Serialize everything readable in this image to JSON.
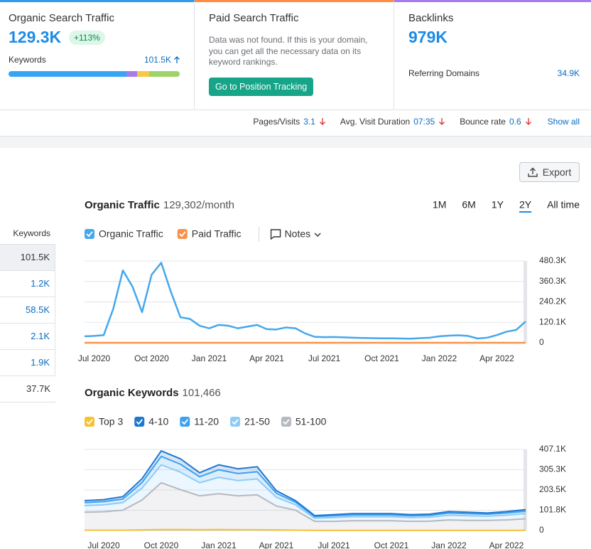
{
  "cards": [
    {
      "title": "Organic Search Traffic",
      "value": "129.3K",
      "badge": "+113%",
      "keywords_label": "Keywords",
      "keywords_value": "101.5K",
      "distribution": [
        {
          "value": 69,
          "color": "#36a6f4"
        },
        {
          "value": 6,
          "color": "#a57cf0"
        },
        {
          "value": 7,
          "color": "#f7c844"
        },
        {
          "value": 18,
          "color": "#9ed36a"
        }
      ]
    },
    {
      "title": "Paid Search Traffic",
      "message": "Data was not found. If this is your domain, you can get all the necessary data on its keyword rankings.",
      "button": "Go to Position Tracking"
    },
    {
      "title": "Backlinks",
      "value": "979K",
      "sub_label": "Referring Domains",
      "sub_value": "34.9K"
    }
  ],
  "metrics": [
    {
      "label": "Pages/Visits",
      "value": "3.1"
    },
    {
      "label": "Avg. Visit Duration",
      "value": "07:35"
    },
    {
      "label": "Bounce rate",
      "value": "0.6"
    }
  ],
  "show_all": "Show all",
  "export": "Export",
  "keywords_table": {
    "header": "Keywords",
    "rows": [
      "101.5K",
      "1.2K",
      "58.5K",
      "2.1K",
      "1.9K",
      "37.7K"
    ]
  },
  "chart_data": [
    {
      "type": "line",
      "title": "Organic Traffic",
      "subtitle": "129,302/month",
      "ranges": [
        "1M",
        "6M",
        "1Y",
        "2Y",
        "All time"
      ],
      "selected_range": "2Y",
      "notes": "Notes",
      "categories": [
        null,
        "Jul 2020",
        null,
        null,
        null,
        null,
        null,
        "Oct 2020",
        null,
        null,
        null,
        null,
        null,
        "Jan 2021",
        null,
        null,
        null,
        null,
        null,
        "Apr 2021",
        null,
        null,
        null,
        null,
        null,
        "Jul 2021",
        null,
        null,
        null,
        null,
        null,
        "Oct 2021",
        null,
        null,
        null,
        null,
        null,
        "Jan 2022",
        null,
        null,
        null,
        null,
        null,
        "Apr 2022",
        null,
        null,
        null
      ],
      "series": [
        {
          "name": "Organic Traffic",
          "color": "#45a7ec",
          "values": [
            38000,
            40000,
            45000,
            200000,
            425000,
            330000,
            180000,
            400000,
            470000,
            300000,
            150000,
            140000,
            100000,
            85000,
            105000,
            100000,
            85000,
            95000,
            105000,
            80000,
            78000,
            90000,
            85000,
            55000,
            35000,
            33000,
            34000,
            32000,
            30000,
            28000,
            27000,
            26000,
            26000,
            25000,
            24000,
            27000,
            30000,
            38000,
            42000,
            44000,
            40000,
            25000,
            30000,
            45000,
            65000,
            75000,
            125000
          ]
        },
        {
          "name": "Paid Traffic",
          "color": "#f7924a",
          "values": [
            0,
            0,
            0,
            0,
            0,
            0,
            0,
            0,
            0,
            0,
            0,
            0,
            0,
            0,
            0,
            0,
            0,
            0,
            0,
            0,
            0,
            0,
            0,
            0,
            0,
            0,
            0,
            0,
            0,
            0,
            0,
            0,
            0,
            0,
            0,
            0,
            0,
            0,
            0,
            0,
            0,
            0,
            0,
            0,
            0,
            0,
            0
          ]
        }
      ],
      "ylim": [
        0,
        480300
      ],
      "yticks": [
        0,
        {
          "value": 120100,
          "label": "120.1K"
        },
        {
          "value": 240200,
          "label": "240.2K"
        },
        {
          "value": 360300,
          "label": "360.3K"
        },
        {
          "value": 480300,
          "label": "480.3K"
        }
      ],
      "grid": true
    },
    {
      "type": "stacked_area",
      "title": "Organic Keywords",
      "subtitle": "101,466",
      "categories": [
        null,
        "Jul 2020",
        null,
        null,
        "Oct 2020",
        null,
        null,
        "Jan 2021",
        null,
        null,
        "Apr 2021",
        null,
        null,
        "Jul 2021",
        null,
        null,
        "Oct 2021",
        null,
        null,
        "Jan 2022",
        null,
        null,
        "Apr 2022",
        null
      ],
      "series": [
        {
          "name": "Top 3",
          "color": "#f6c231",
          "values": [
            2000,
            2000,
            2000,
            3000,
            5000,
            5000,
            4000,
            5000,
            4000,
            4000,
            3000,
            2000,
            1000,
            1000,
            1000,
            1000,
            1000,
            1000,
            1000,
            1000,
            1000,
            1000,
            1000,
            1000
          ]
        },
        {
          "name": "4-10",
          "color": "#1f77d0",
          "values": [
            10000,
            10000,
            12000,
            19000,
            28000,
            27000,
            20000,
            25000,
            24000,
            25000,
            13000,
            8000,
            5000,
            6000,
            7000,
            7000,
            7000,
            6000,
            6000,
            7000,
            7000,
            6000,
            7000,
            8000
          ]
        },
        {
          "name": "11-20",
          "color": "#3ea1ef",
          "values": [
            15000,
            16000,
            18000,
            28000,
            42000,
            40000,
            30000,
            38000,
            35000,
            36000,
            20000,
            13000,
            8000,
            9000,
            9000,
            9000,
            9000,
            9000,
            9000,
            11000,
            11000,
            10000,
            11000,
            12000
          ]
        },
        {
          "name": "21-50",
          "color": "#8ecbf7",
          "values": [
            33000,
            35000,
            38000,
            60000,
            90000,
            88000,
            66000,
            82000,
            77000,
            80000,
            44000,
            27000,
            16000,
            19000,
            20000,
            20000,
            20000,
            19000,
            20000,
            24000,
            23000,
            21000,
            24000,
            26000
          ]
        },
        {
          "name": "51-100",
          "color": "#b5b9c0",
          "values": [
            90000,
            92000,
            100000,
            150000,
            235000,
            200000,
            170000,
            180000,
            170000,
            175000,
            120000,
            100000,
            45000,
            45000,
            48000,
            48000,
            48000,
            45000,
            46000,
            52000,
            50000,
            50000,
            52000,
            58000
          ]
        }
      ],
      "ylim": [
        0,
        407100
      ],
      "yticks": [
        0,
        {
          "value": 101800,
          "label": "101.8K"
        },
        {
          "value": 203500,
          "label": "203.5K"
        },
        {
          "value": 305300,
          "label": "305.3K"
        },
        {
          "value": 407100,
          "label": "407.1K"
        }
      ],
      "grid": true
    }
  ]
}
